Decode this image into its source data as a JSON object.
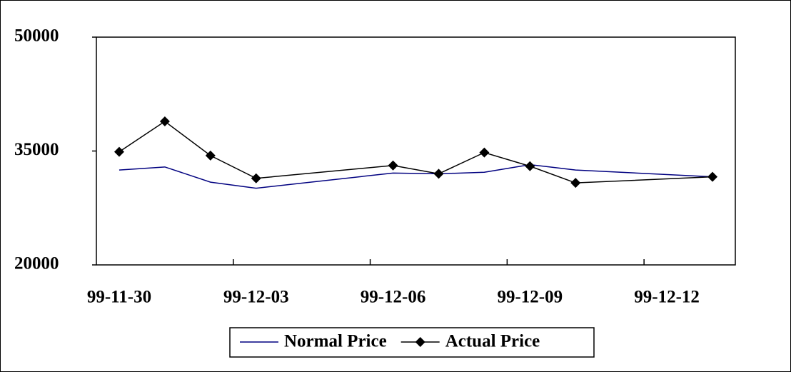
{
  "chart_data": {
    "type": "line",
    "x": [
      "99-11-30",
      "99-12-01",
      "99-12-02",
      "99-12-03",
      "99-12-06",
      "99-12-07",
      "99-12-08",
      "99-12-09",
      "99-12-10",
      "99-12-13"
    ],
    "series": [
      {
        "name": "Normal Price",
        "color": "#000080",
        "marker": "none",
        "values": [
          32500,
          32900,
          30900,
          30100,
          32100,
          32000,
          32200,
          33200,
          32500,
          31600
        ]
      },
      {
        "name": "Actual Price",
        "color": "#000000",
        "marker": "diamond",
        "values": [
          34900,
          38900,
          34400,
          31400,
          33100,
          32000,
          34800,
          33000,
          30800,
          31600
        ]
      }
    ],
    "xlim": [
      "99-11-30",
      "99-12-13"
    ],
    "xticks": [
      "99-11-30",
      "99-12-03",
      "99-12-06",
      "99-12-09",
      "99-12-12"
    ],
    "ylim": [
      20000,
      50000
    ],
    "yticks": [
      20000,
      35000,
      50000
    ],
    "grid": false,
    "legend": "bottom"
  }
}
